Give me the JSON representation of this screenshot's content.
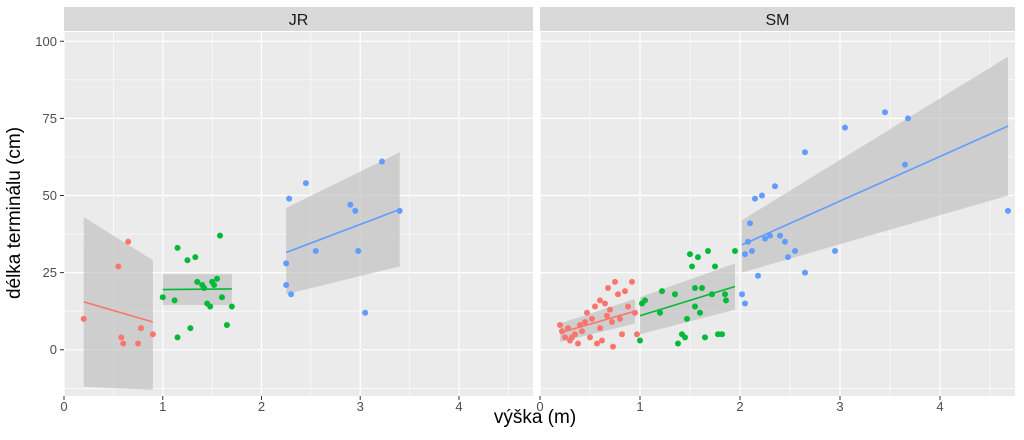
{
  "chart_data": {
    "type": "scatter",
    "xlabel": "výška (m)",
    "ylabel": "délka terminálu (cm)",
    "xlim": [
      0,
      4.75
    ],
    "ylim": [
      -15,
      103
    ],
    "x_ticks": [
      0,
      1,
      2,
      3,
      4
    ],
    "y_ticks": [
      0,
      25,
      50,
      75,
      100
    ],
    "x_tick_labels": [
      "0",
      "1",
      "2",
      "3",
      "4"
    ],
    "y_tick_labels": [
      "0",
      "25",
      "50",
      "75",
      "100"
    ],
    "grid": true,
    "legend": "none",
    "colors": {
      "red": "#F8766D",
      "green": "#00BA38",
      "blue": "#619CFF",
      "ribbon": "#BEBEBE",
      "panel": "#EBEBEB",
      "strip": "#D9D9D9"
    },
    "facets": [
      {
        "label": "JR",
        "groups": [
          {
            "color": "#F8766D",
            "points": [
              [
                0.2,
                10
              ],
              [
                0.55,
                27
              ],
              [
                0.58,
                4
              ],
              [
                0.6,
                2
              ],
              [
                0.65,
                35
              ],
              [
                0.75,
                2
              ],
              [
                0.78,
                7
              ],
              [
                0.9,
                5
              ]
            ],
            "fit": {
              "x": [
                0.2,
                0.9
              ],
              "y": [
                15.5,
                9.0
              ],
              "ymin": [
                -12,
                -13
              ],
              "ymax": [
                43,
                29
              ]
            }
          },
          {
            "color": "#00BA38",
            "points": [
              [
                1.0,
                17
              ],
              [
                1.12,
                16
              ],
              [
                1.15,
                33
              ],
              [
                1.15,
                4
              ],
              [
                1.25,
                29
              ],
              [
                1.28,
                7
              ],
              [
                1.33,
                30
              ],
              [
                1.35,
                22
              ],
              [
                1.4,
                21
              ],
              [
                1.42,
                20
              ],
              [
                1.45,
                15
              ],
              [
                1.48,
                14
              ],
              [
                1.5,
                22
              ],
              [
                1.52,
                21
              ],
              [
                1.55,
                23
              ],
              [
                1.58,
                37
              ],
              [
                1.6,
                17
              ],
              [
                1.65,
                8
              ],
              [
                1.7,
                14
              ]
            ],
            "fit": {
              "x": [
                1.0,
                1.7
              ],
              "y": [
                19.5,
                19.7
              ],
              "ymin": [
                14.5,
                14.5
              ],
              "ymax": [
                24.5,
                24.5
              ]
            }
          },
          {
            "color": "#619CFF",
            "points": [
              [
                2.25,
                28
              ],
              [
                2.25,
                21
              ],
              [
                2.28,
                49
              ],
              [
                2.3,
                18
              ],
              [
                2.45,
                54
              ],
              [
                2.55,
                32
              ],
              [
                2.9,
                47
              ],
              [
                2.95,
                45
              ],
              [
                2.98,
                32
              ],
              [
                3.05,
                12
              ],
              [
                3.22,
                61
              ],
              [
                3.4,
                45
              ]
            ],
            "fit": {
              "x": [
                2.25,
                3.4
              ],
              "y": [
                31.5,
                45.5
              ],
              "ymin": [
                18,
                27
              ],
              "ymax": [
                46,
                64
              ]
            }
          }
        ]
      },
      {
        "label": "SM",
        "groups": [
          {
            "color": "#F8766D",
            "points": [
              [
                0.2,
                8
              ],
              [
                0.22,
                6
              ],
              [
                0.25,
                4
              ],
              [
                0.28,
                7
              ],
              [
                0.3,
                3
              ],
              [
                0.32,
                4
              ],
              [
                0.35,
                5
              ],
              [
                0.38,
                2
              ],
              [
                0.4,
                8
              ],
              [
                0.42,
                6
              ],
              [
                0.45,
                9
              ],
              [
                0.47,
                12
              ],
              [
                0.5,
                4
              ],
              [
                0.52,
                10
              ],
              [
                0.55,
                14
              ],
              [
                0.57,
                2
              ],
              [
                0.6,
                7
              ],
              [
                0.62,
                3
              ],
              [
                0.65,
                15
              ],
              [
                0.67,
                11
              ],
              [
                0.7,
                13
              ],
              [
                0.72,
                9
              ],
              [
                0.75,
                22
              ],
              [
                0.78,
                18
              ],
              [
                0.8,
                10
              ],
              [
                0.82,
                5
              ],
              [
                0.85,
                19
              ],
              [
                0.88,
                14
              ],
              [
                0.92,
                22
              ],
              [
                0.95,
                12
              ],
              [
                0.97,
                5
              ],
              [
                0.6,
                16
              ],
              [
                0.68,
                20
              ],
              [
                0.73,
                1
              ]
            ],
            "fit": {
              "x": [
                0.2,
                0.95
              ],
              "y": [
                5.5,
                12.5
              ],
              "ymin": [
                2.5,
                8.5
              ],
              "ymax": [
                8.5,
                16.5
              ]
            }
          },
          {
            "color": "#00BA38",
            "points": [
              [
                1.0,
                3
              ],
              [
                1.02,
                15
              ],
              [
                1.05,
                16
              ],
              [
                1.2,
                12
              ],
              [
                1.22,
                19
              ],
              [
                1.35,
                18
              ],
              [
                1.38,
                2
              ],
              [
                1.42,
                5
              ],
              [
                1.45,
                4
              ],
              [
                1.47,
                10
              ],
              [
                1.5,
                31
              ],
              [
                1.52,
                27
              ],
              [
                1.55,
                14
              ],
              [
                1.55,
                20
              ],
              [
                1.58,
                30
              ],
              [
                1.6,
                12
              ],
              [
                1.62,
                20
              ],
              [
                1.65,
                4
              ],
              [
                1.68,
                32
              ],
              [
                1.72,
                18
              ],
              [
                1.75,
                27
              ],
              [
                1.78,
                5
              ],
              [
                1.82,
                5
              ],
              [
                1.85,
                18
              ],
              [
                1.86,
                16
              ],
              [
                1.95,
                32
              ]
            ],
            "fit": {
              "x": [
                1.0,
                1.95
              ],
              "y": [
                11.0,
                20.5
              ],
              "ymin": [
                5,
                13
              ],
              "ymax": [
                17,
                28
              ]
            }
          },
          {
            "color": "#619CFF",
            "points": [
              [
                2.02,
                18
              ],
              [
                2.05,
                31
              ],
              [
                2.08,
                35
              ],
              [
                2.1,
                41
              ],
              [
                2.12,
                32
              ],
              [
                2.15,
                49
              ],
              [
                2.18,
                24
              ],
              [
                2.22,
                50
              ],
              [
                2.3,
                37
              ],
              [
                2.35,
                53
              ],
              [
                2.45,
                35
              ],
              [
                2.48,
                30
              ],
              [
                2.55,
                32
              ],
              [
                2.65,
                64
              ],
              [
                2.65,
                25
              ],
              [
                2.95,
                32
              ],
              [
                3.05,
                72
              ],
              [
                3.45,
                77
              ],
              [
                3.65,
                60
              ],
              [
                3.68,
                75
              ],
              [
                4.68,
                45
              ],
              [
                2.05,
                15
              ],
              [
                2.25,
                36
              ],
              [
                2.4,
                37
              ]
            ],
            "fit": {
              "x": [
                2.02,
                4.68
              ],
              "y": [
                34,
                72.5
              ],
              "ymin": [
                25,
                50
              ],
              "ymax": [
                42,
                95
              ]
            }
          }
        ]
      }
    ]
  }
}
